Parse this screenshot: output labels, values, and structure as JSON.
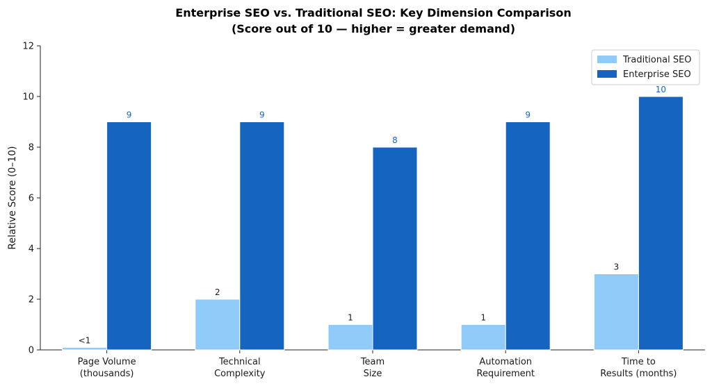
{
  "chart_data": {
    "type": "bar",
    "title": "Enterprise SEO vs. Traditional SEO: Key Dimension Comparison",
    "subtitle": "(Score out of 10 — higher = greater demand)",
    "xlabel": "",
    "ylabel": "Relative Score (0–10)",
    "ylim": [
      0,
      12
    ],
    "yticks": [
      "0",
      "2",
      "4",
      "6",
      "8",
      "10",
      "12"
    ],
    "categories": [
      [
        "Page Volume",
        "(thousands)"
      ],
      [
        "Technical",
        "Complexity"
      ],
      [
        "Team",
        "Size"
      ],
      [
        "Automation",
        "Requirement"
      ],
      [
        "Time to",
        "Results (months)"
      ]
    ],
    "series": [
      {
        "name": "Traditional SEO",
        "color": "#90caf9",
        "label_color": "#1a1a1a",
        "values": [
          0.1,
          2,
          1,
          1,
          3
        ],
        "labels": [
          "<1",
          "2",
          "1",
          "1",
          "3"
        ]
      },
      {
        "name": "Enterprise SEO",
        "color": "#1565c0",
        "label_color": "#1565c0",
        "values": [
          9,
          9,
          8,
          9,
          10
        ],
        "labels": [
          "9",
          "9",
          "8",
          "9",
          "10"
        ]
      }
    ],
    "legend_position": "top-right",
    "grid": false
  }
}
